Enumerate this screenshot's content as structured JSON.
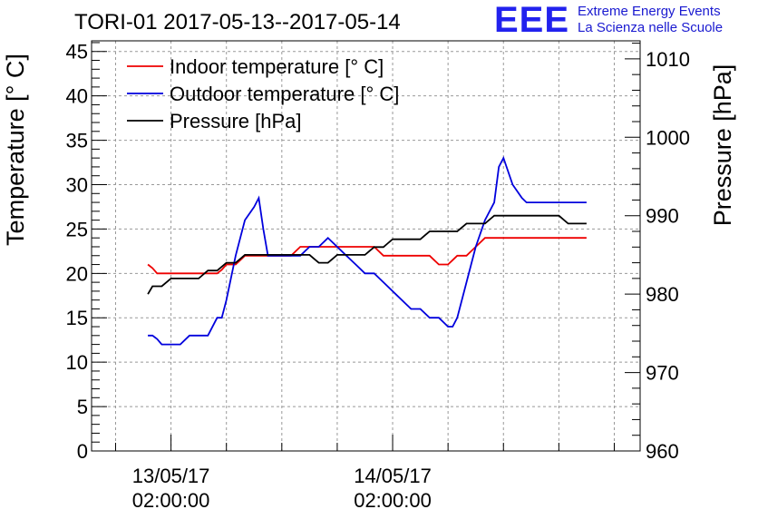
{
  "brand": {
    "logo": "EEE",
    "line1": "Extreme Energy Events",
    "line2": "La Scienza nelle Scuole",
    "color": "#2222ee"
  },
  "chart_data": {
    "type": "line",
    "title": "TORI-01 2017-05-13--2017-05-14",
    "ylabel": "Temperature [° C]",
    "y2label": "Pressure [hPa]",
    "xlabel": "",
    "x_unit": "hours since 2017-05-13 00:00:00",
    "xlim": [
      -6.6,
      52.8
    ],
    "ylim": [
      0,
      46.2
    ],
    "y2lim": [
      960,
      1012.3
    ],
    "y_ticks": [
      0,
      5,
      10,
      15,
      20,
      25,
      30,
      35,
      40,
      45
    ],
    "y2_ticks": [
      960,
      970,
      980,
      990,
      1000,
      1010
    ],
    "x_ticks": [
      {
        "x": 2,
        "date": "13/05/17",
        "time": "02:00:00"
      },
      {
        "x": 26,
        "date": "14/05/17",
        "time": "02:00:00"
      }
    ],
    "x_minor_tick_step_hours": 6,
    "grid": true,
    "legend_position": "top-left",
    "series": [
      {
        "name": "Indoor temperature [° C]",
        "color": "#ee0000",
        "axis": "left",
        "points": [
          [
            -0.5,
            21
          ],
          [
            0,
            20.6
          ],
          [
            0.5,
            20
          ],
          [
            1,
            20
          ],
          [
            2,
            20
          ],
          [
            3,
            20
          ],
          [
            4,
            20
          ],
          [
            5,
            20
          ],
          [
            6,
            20
          ],
          [
            7,
            20
          ],
          [
            7.5,
            20.4
          ],
          [
            8,
            21
          ],
          [
            9,
            21
          ],
          [
            9.5,
            21.5
          ],
          [
            10,
            22
          ],
          [
            11,
            22
          ],
          [
            12,
            22
          ],
          [
            13,
            22
          ],
          [
            14,
            22
          ],
          [
            15,
            22
          ],
          [
            15.5,
            22.5
          ],
          [
            16,
            23
          ],
          [
            17,
            23
          ],
          [
            18,
            23
          ],
          [
            19,
            23
          ],
          [
            20,
            23
          ],
          [
            21,
            23
          ],
          [
            22,
            23
          ],
          [
            23,
            23
          ],
          [
            24,
            23
          ],
          [
            24.5,
            22.5
          ],
          [
            25,
            22
          ],
          [
            26,
            22
          ],
          [
            27,
            22
          ],
          [
            28,
            22
          ],
          [
            29,
            22
          ],
          [
            30,
            22
          ],
          [
            30.5,
            21.5
          ],
          [
            31,
            21
          ],
          [
            32,
            21
          ],
          [
            32.5,
            21.5
          ],
          [
            33,
            22
          ],
          [
            34,
            22
          ],
          [
            34.5,
            22.5
          ],
          [
            35,
            23
          ],
          [
            35.5,
            23.5
          ],
          [
            36,
            24
          ],
          [
            37,
            24
          ],
          [
            38,
            24
          ],
          [
            39,
            24
          ],
          [
            40,
            24
          ],
          [
            41,
            24
          ],
          [
            42,
            24
          ],
          [
            43,
            24
          ],
          [
            44,
            24
          ],
          [
            45,
            24
          ],
          [
            46,
            24
          ],
          [
            47,
            24
          ]
        ]
      },
      {
        "name": "Outdoor temperature [° C]",
        "color": "#0000dd",
        "axis": "left",
        "points": [
          [
            -0.5,
            13
          ],
          [
            0,
            13
          ],
          [
            0.5,
            12.6
          ],
          [
            1,
            12
          ],
          [
            2,
            12
          ],
          [
            3,
            12
          ],
          [
            3.5,
            12.5
          ],
          [
            4,
            13
          ],
          [
            5,
            13
          ],
          [
            6,
            13
          ],
          [
            7,
            15
          ],
          [
            7.5,
            15
          ],
          [
            8,
            17
          ],
          [
            9,
            22
          ],
          [
            9.5,
            24
          ],
          [
            10,
            26
          ],
          [
            11,
            27.5
          ],
          [
            11.5,
            28.5
          ],
          [
            12,
            25
          ],
          [
            12.5,
            22
          ],
          [
            13,
            22
          ],
          [
            14,
            22
          ],
          [
            15,
            22
          ],
          [
            16,
            22
          ],
          [
            16.5,
            22.5
          ],
          [
            17,
            23
          ],
          [
            18,
            23
          ],
          [
            19,
            24
          ],
          [
            20,
            23
          ],
          [
            21,
            22
          ],
          [
            22,
            21
          ],
          [
            22.5,
            20.5
          ],
          [
            23,
            20
          ],
          [
            24,
            20
          ],
          [
            25,
            19
          ],
          [
            26,
            18
          ],
          [
            26.5,
            17.5
          ],
          [
            27,
            17
          ],
          [
            28,
            16
          ],
          [
            29,
            16
          ],
          [
            30,
            15
          ],
          [
            31,
            15
          ],
          [
            31.5,
            14.5
          ],
          [
            32,
            14
          ],
          [
            32.5,
            14
          ],
          [
            33,
            15
          ],
          [
            34,
            19
          ],
          [
            35,
            23
          ],
          [
            36,
            26
          ],
          [
            37,
            28
          ],
          [
            37.5,
            32
          ],
          [
            38,
            33
          ],
          [
            39,
            30
          ],
          [
            40,
            28.5
          ],
          [
            40.5,
            28
          ],
          [
            41,
            28
          ],
          [
            42,
            28
          ],
          [
            43,
            28
          ],
          [
            44,
            28
          ],
          [
            45,
            28
          ],
          [
            46,
            28
          ],
          [
            47,
            28
          ]
        ]
      },
      {
        "name": "Pressure [hPa]",
        "color": "#000000",
        "axis": "right",
        "points": [
          [
            -0.5,
            980
          ],
          [
            0,
            981
          ],
          [
            1,
            981
          ],
          [
            2,
            982
          ],
          [
            3,
            982
          ],
          [
            4,
            982
          ],
          [
            5,
            982
          ],
          [
            5.5,
            982.5
          ],
          [
            6,
            983
          ],
          [
            7,
            983
          ],
          [
            7.5,
            983.5
          ],
          [
            8,
            984
          ],
          [
            9,
            984
          ],
          [
            9.5,
            984.5
          ],
          [
            10,
            985
          ],
          [
            11,
            985
          ],
          [
            12,
            985
          ],
          [
            13,
            985
          ],
          [
            14,
            985
          ],
          [
            15,
            985
          ],
          [
            16,
            985
          ],
          [
            17,
            985
          ],
          [
            17.5,
            984.5
          ],
          [
            18,
            984
          ],
          [
            19,
            984
          ],
          [
            19.5,
            984.5
          ],
          [
            20,
            985
          ],
          [
            21,
            985
          ],
          [
            22,
            985
          ],
          [
            23,
            985
          ],
          [
            23.5,
            985.5
          ],
          [
            24,
            986
          ],
          [
            25,
            986
          ],
          [
            25.5,
            986.5
          ],
          [
            26,
            987
          ],
          [
            27,
            987
          ],
          [
            28,
            987
          ],
          [
            29,
            987
          ],
          [
            29.5,
            987.5
          ],
          [
            30,
            988
          ],
          [
            31,
            988
          ],
          [
            32,
            988
          ],
          [
            33,
            988
          ],
          [
            33.5,
            988.5
          ],
          [
            34,
            989
          ],
          [
            35,
            989
          ],
          [
            36,
            989
          ],
          [
            36.5,
            989.5
          ],
          [
            37,
            990
          ],
          [
            38,
            990
          ],
          [
            39,
            990
          ],
          [
            40,
            990
          ],
          [
            41,
            990
          ],
          [
            42,
            990
          ],
          [
            43,
            990
          ],
          [
            44,
            990
          ],
          [
            45,
            989
          ],
          [
            46,
            989
          ],
          [
            47,
            989
          ]
        ]
      }
    ]
  }
}
